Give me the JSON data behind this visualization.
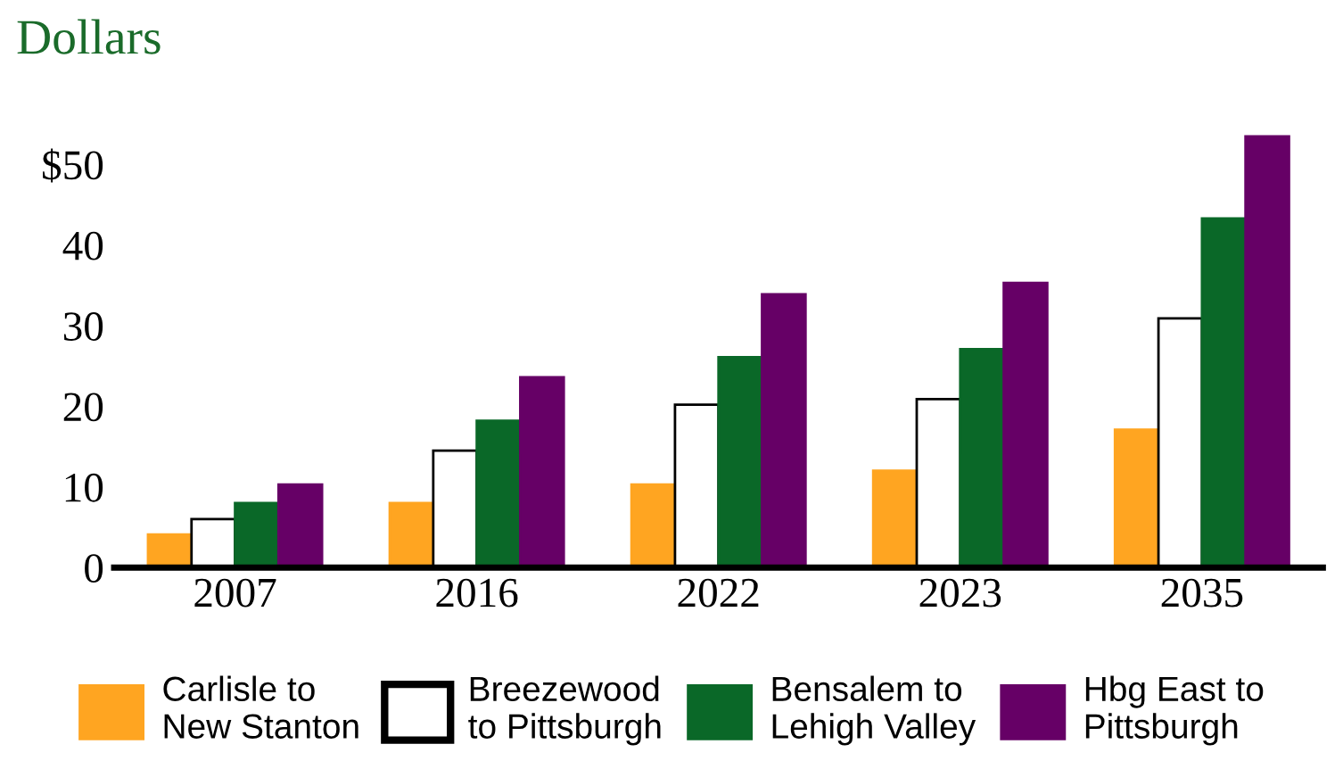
{
  "chart_data": {
    "type": "bar",
    "title": "Dollars",
    "categories": [
      "2007",
      "2016",
      "2022",
      "2023",
      "2035"
    ],
    "series": [
      {
        "name": "Carlisle to\nNew Stanton",
        "color": "#ffa521",
        "values": [
          4.1,
          8.0,
          10.3,
          12.0,
          17.1
        ]
      },
      {
        "name": "Breezewood\nto Pittsburgh",
        "color": "#ffffff",
        "values": [
          6.0,
          14.5,
          20.2,
          20.9,
          30.9
        ]
      },
      {
        "name": "Bensalem to\nLehigh Valley",
        "color": "#0a6828",
        "values": [
          8.0,
          18.2,
          26.1,
          27.1,
          43.3
        ]
      },
      {
        "name": "Hbg East to\nPittsburgh",
        "color": "#660066",
        "values": [
          10.3,
          23.6,
          33.9,
          35.3,
          53.5
        ]
      }
    ],
    "ylim": [
      0,
      54
    ],
    "yticks": [
      0,
      10,
      20,
      30,
      40,
      {
        "value": 50,
        "label": "$50"
      }
    ],
    "grid": false,
    "legend": "bottom"
  }
}
